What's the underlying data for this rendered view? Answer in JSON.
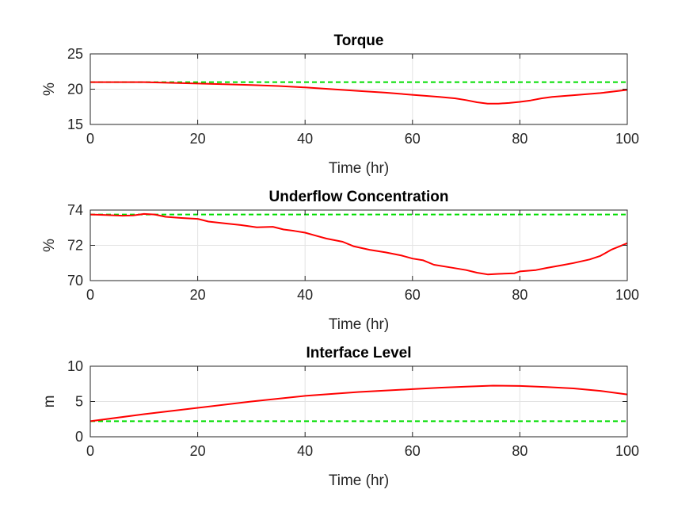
{
  "chart_data": [
    {
      "type": "line",
      "title": "Torque",
      "xlabel": "Time (hr)",
      "ylabel": "%",
      "xlim": [
        0,
        100
      ],
      "ylim": [
        15,
        25
      ],
      "xticks": [
        0,
        20,
        40,
        60,
        80,
        100
      ],
      "yticks": [
        15,
        20,
        25
      ],
      "grid": true,
      "series": [
        {
          "style": "solid",
          "color": "#ff0000",
          "x": [
            0,
            5,
            10,
            15,
            20,
            25,
            30,
            35,
            40,
            45,
            50,
            55,
            60,
            65,
            68,
            70,
            72,
            74,
            76,
            78,
            80,
            82,
            84,
            86,
            90,
            95,
            100
          ],
          "y": [
            21.0,
            21.0,
            21.0,
            20.9,
            20.8,
            20.7,
            20.6,
            20.45,
            20.25,
            20.0,
            19.75,
            19.5,
            19.2,
            18.9,
            18.7,
            18.45,
            18.15,
            17.95,
            17.95,
            18.05,
            18.2,
            18.4,
            18.7,
            18.9,
            19.15,
            19.45,
            19.9
          ]
        },
        {
          "style": "dashed",
          "color": "#00dd00",
          "x": [
            0,
            100
          ],
          "y": [
            21.0,
            21.0
          ]
        }
      ]
    },
    {
      "type": "line",
      "title": "Underflow Concentration",
      "xlabel": "Time (hr)",
      "ylabel": "%",
      "xlim": [
        0,
        100
      ],
      "ylim": [
        70,
        74
      ],
      "xticks": [
        0,
        20,
        40,
        60,
        80,
        100
      ],
      "yticks": [
        70,
        72,
        74
      ],
      "grid": true,
      "series": [
        {
          "style": "solid",
          "color": "#ff0000",
          "x": [
            0,
            3,
            6,
            8,
            10,
            12,
            14,
            17,
            20,
            22,
            25,
            28,
            31,
            34,
            36,
            38,
            40,
            42,
            44,
            47,
            49,
            52,
            55,
            58,
            60,
            62,
            64,
            67,
            70,
            72,
            74,
            76,
            79,
            80,
            83,
            85,
            88,
            90,
            93,
            95,
            97,
            100
          ],
          "y": [
            73.75,
            73.72,
            73.68,
            73.7,
            73.78,
            73.75,
            73.62,
            73.55,
            73.5,
            73.35,
            73.25,
            73.15,
            73.02,
            73.05,
            72.9,
            72.82,
            72.72,
            72.55,
            72.38,
            72.2,
            71.95,
            71.75,
            71.6,
            71.42,
            71.25,
            71.15,
            70.9,
            70.75,
            70.6,
            70.45,
            70.35,
            70.38,
            70.42,
            70.52,
            70.6,
            70.72,
            70.88,
            71.0,
            71.2,
            71.4,
            71.75,
            72.12
          ]
        },
        {
          "style": "dashed",
          "color": "#00dd00",
          "x": [
            0,
            100
          ],
          "y": [
            73.75,
            73.75
          ]
        }
      ]
    },
    {
      "type": "line",
      "title": "Interface Level",
      "xlabel": "Time (hr)",
      "ylabel": "m",
      "xlim": [
        0,
        100
      ],
      "ylim": [
        0,
        10
      ],
      "xticks": [
        0,
        20,
        40,
        60,
        80,
        100
      ],
      "yticks": [
        0,
        5,
        10
      ],
      "grid": true,
      "series": [
        {
          "style": "solid",
          "color": "#ff0000",
          "x": [
            0,
            10,
            20,
            30,
            40,
            50,
            60,
            65,
            70,
            75,
            80,
            85,
            90,
            95,
            100
          ],
          "y": [
            2.2,
            3.2,
            4.1,
            5.0,
            5.8,
            6.35,
            6.75,
            6.95,
            7.1,
            7.25,
            7.2,
            7.05,
            6.85,
            6.5,
            6.0
          ]
        },
        {
          "style": "dashed",
          "color": "#00dd00",
          "x": [
            0,
            100
          ],
          "y": [
            2.2,
            2.2
          ]
        }
      ]
    }
  ]
}
